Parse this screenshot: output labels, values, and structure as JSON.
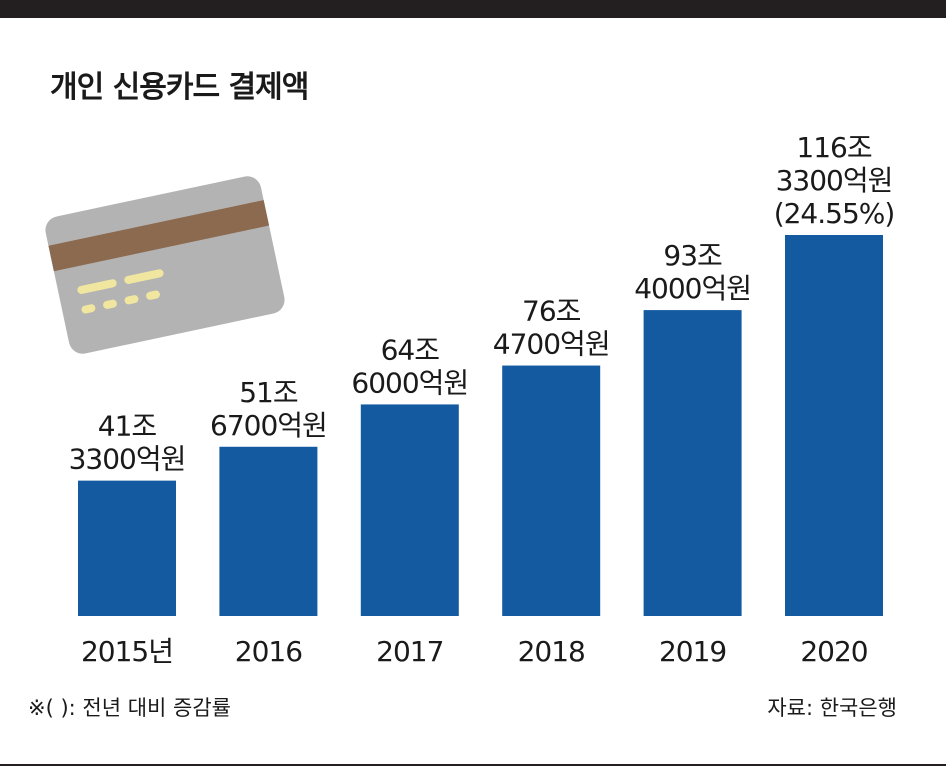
{
  "title": "개인 신용카드 결제액",
  "footnote": "※(   ): 전년 대비 증감률",
  "source": "자료: 한국은행",
  "colors": {
    "bar": "#135aa0",
    "top_bar": "#231f20"
  },
  "chart_data": {
    "type": "bar",
    "title": "개인 신용카드 결제액",
    "categories": [
      "2015년",
      "2016",
      "2017",
      "2018",
      "2019",
      "2020"
    ],
    "values": [
      41.33,
      51.67,
      64.6,
      76.47,
      93.4,
      116.33
    ],
    "value_labels": [
      [
        "41조",
        "3300억원"
      ],
      [
        "51조",
        "6700억원"
      ],
      [
        "64조",
        "6000억원"
      ],
      [
        "76조",
        "4700억원"
      ],
      [
        "93조",
        "4000억원"
      ],
      [
        "116조",
        "3300억원",
        "(24.55%)"
      ]
    ],
    "xlabel": "",
    "ylabel": "",
    "ylim": [
      0,
      116.33
    ],
    "grid": false,
    "legend": "none"
  }
}
